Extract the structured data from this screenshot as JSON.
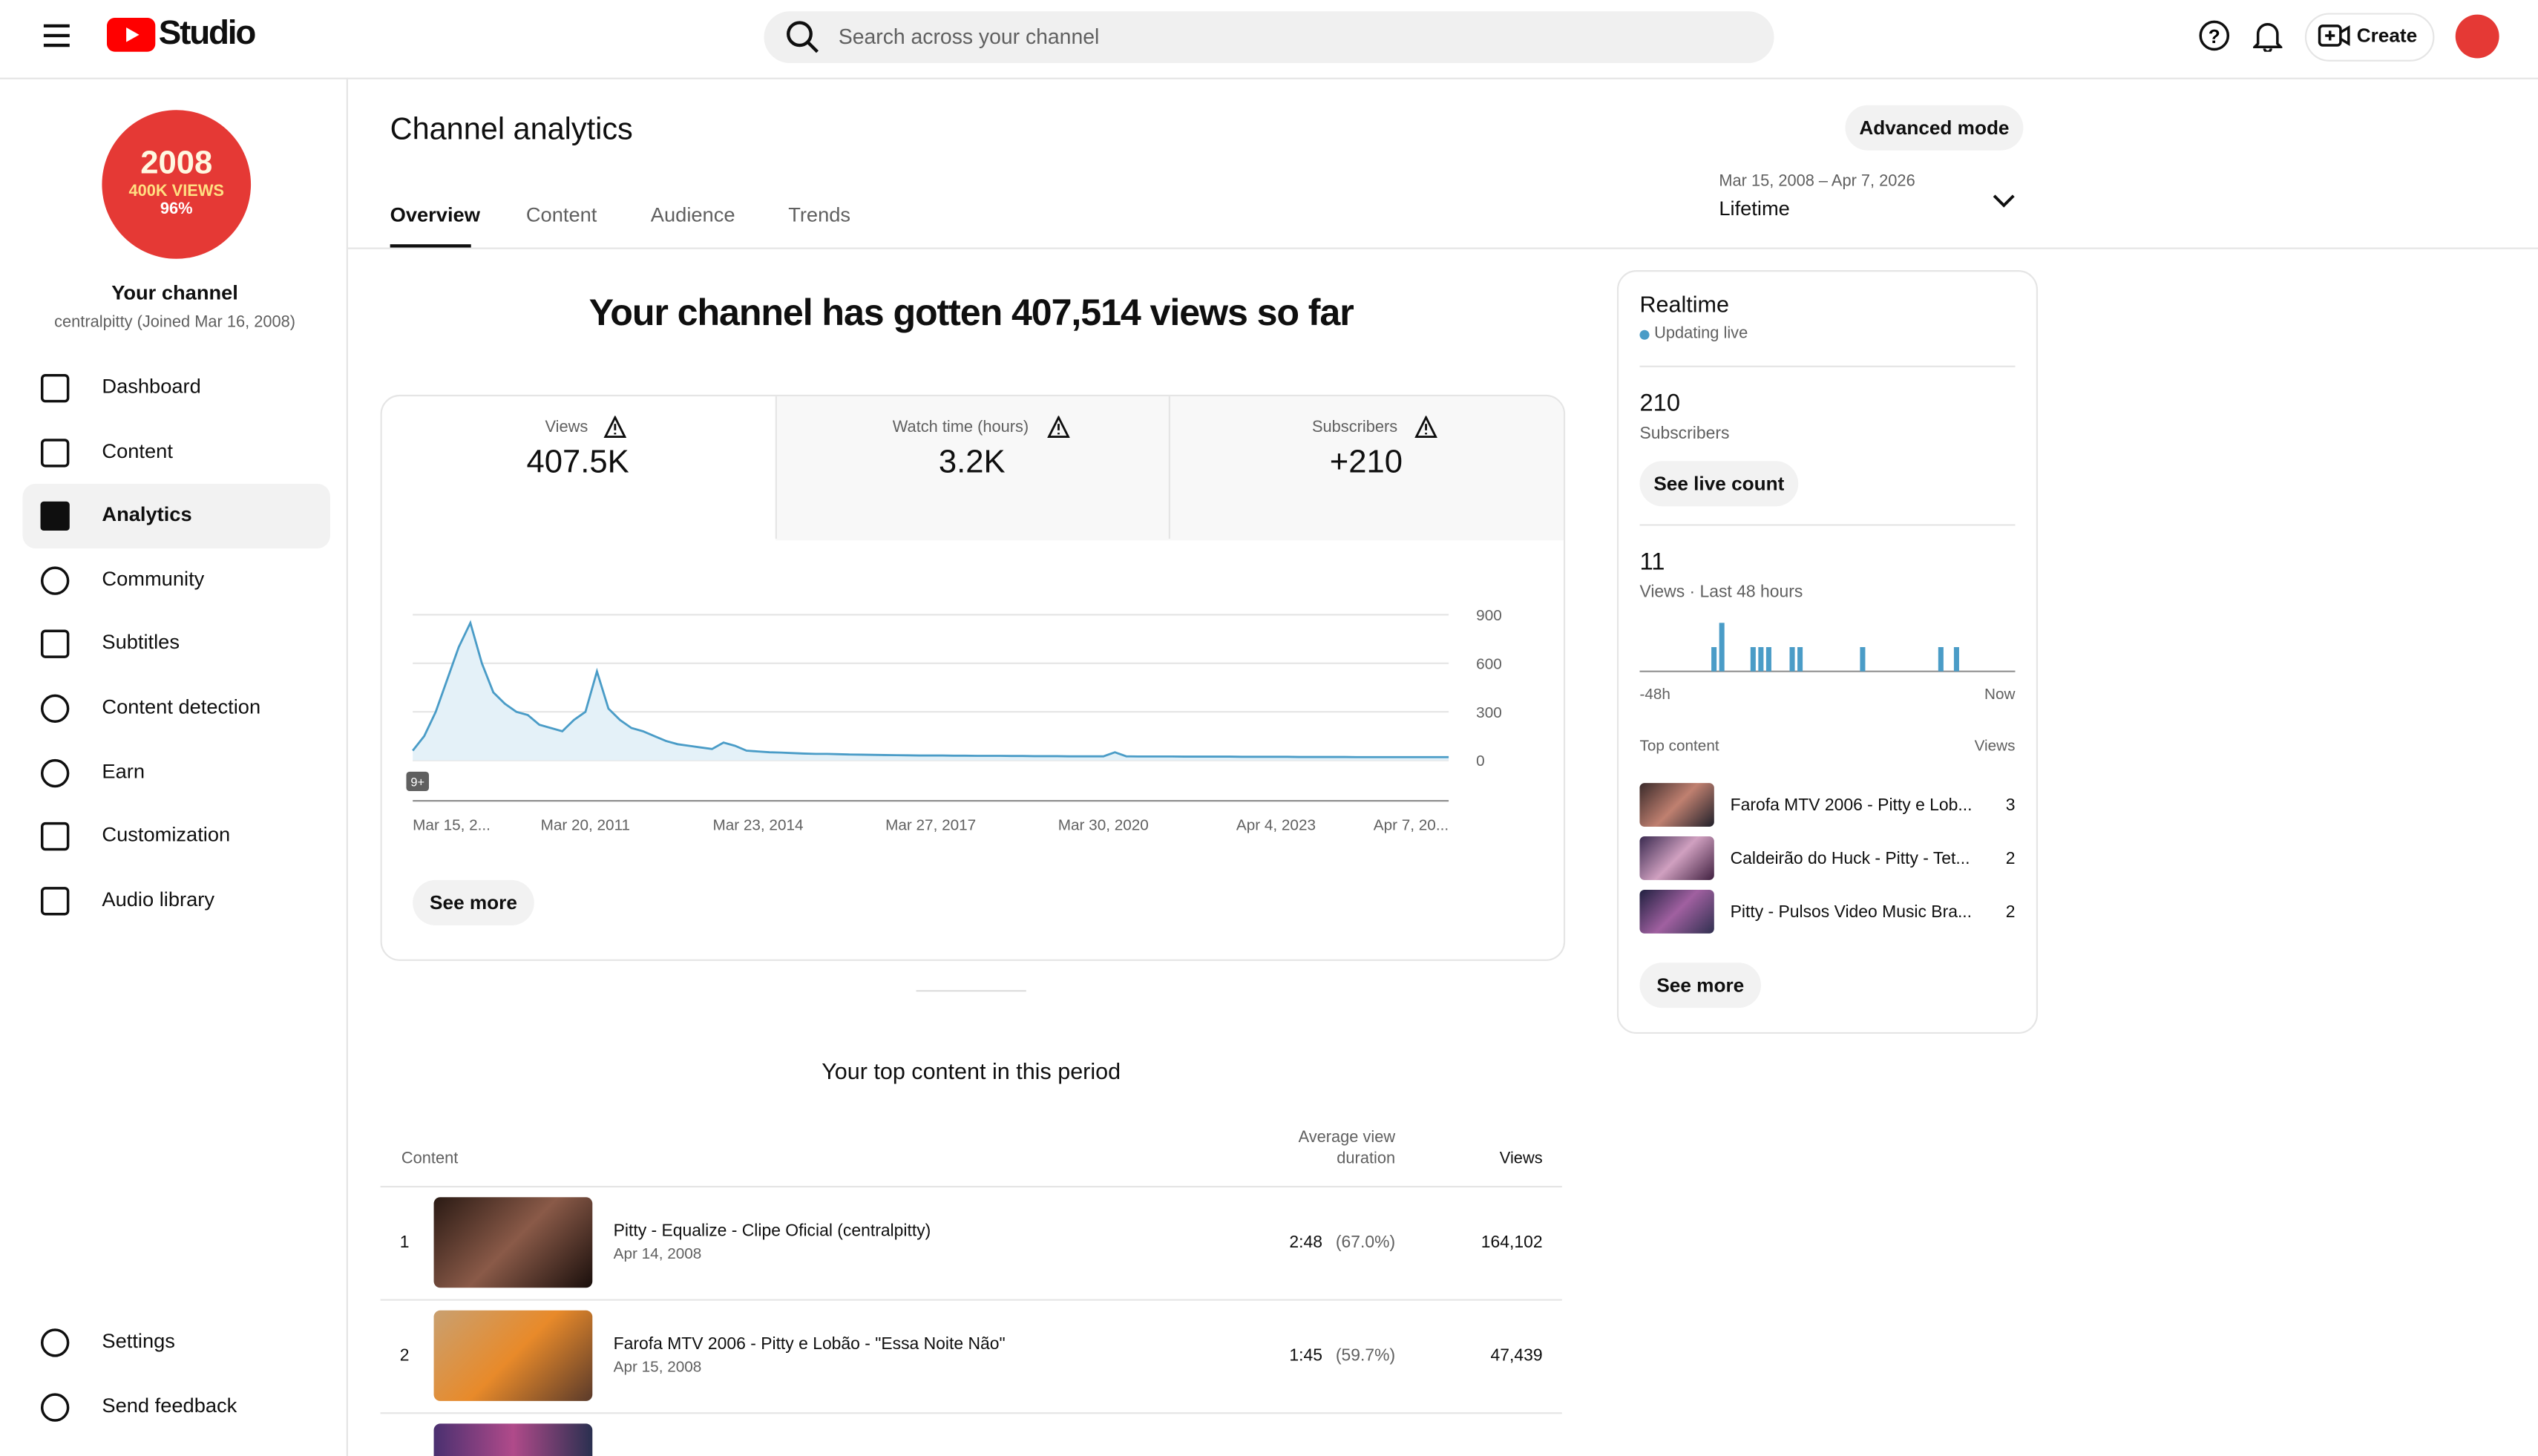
{
  "header": {
    "logo": "Studio",
    "search_placeholder": "Search across your channel",
    "create": "Create"
  },
  "sidebar": {
    "avatar": {
      "line1": "2008",
      "line2": "400K VIEWS",
      "line3": "96%"
    },
    "channel_name": "Your channel",
    "channel_sub": "centralpitty (Joined Mar 16, 2008)",
    "nav": [
      "Dashboard",
      "Content",
      "Analytics",
      "Community",
      "Subtitles",
      "Content detection",
      "Earn",
      "Customization",
      "Audio library"
    ],
    "bottom": [
      "Settings",
      "Send feedback"
    ]
  },
  "main": {
    "title": "Channel analytics",
    "advanced": "Advanced mode",
    "tabs": [
      "Overview",
      "Content",
      "Audience",
      "Trends"
    ],
    "date_range": "Mar 15, 2008 – Apr 7, 2026",
    "period": "Lifetime",
    "headline": "Your channel has gotten 407,514 views so far",
    "metrics": [
      {
        "label": "Views",
        "value": "407.5K"
      },
      {
        "label": "Watch time (hours)",
        "value": "3.2K"
      },
      {
        "label": "Subscribers",
        "value": "+210"
      }
    ],
    "chart_data": {
      "type": "line",
      "color": "#4a9cc7",
      "annotation": "9+",
      "values": [
        60,
        150,
        300,
        500,
        700,
        850,
        600,
        420,
        350,
        300,
        280,
        220,
        200,
        180,
        250,
        300,
        550,
        320,
        250,
        200,
        180,
        150,
        120,
        100,
        90,
        80,
        70,
        110,
        90,
        60,
        55,
        50,
        48,
        45,
        42,
        40,
        40,
        38,
        36,
        35,
        34,
        33,
        32,
        31,
        30,
        30,
        30,
        29,
        29,
        28,
        28,
        28,
        27,
        27,
        26,
        26,
        26,
        25,
        25,
        25,
        25,
        50,
        25,
        24,
        24,
        24,
        24,
        23,
        23,
        23,
        23,
        23,
        22,
        22,
        22,
        22,
        22,
        21,
        21,
        21,
        21,
        21,
        20,
        20,
        20,
        20,
        20,
        20,
        20,
        20,
        20
      ],
      "xlim": [
        0,
        90
      ],
      "xticks": [
        {
          "value": 0,
          "label": "Mar 15, 2..."
        },
        {
          "value": 15,
          "label": "Mar 20, 2011"
        },
        {
          "value": 30,
          "label": "Mar 23, 2014"
        },
        {
          "value": 45,
          "label": "Mar 27, 2017"
        },
        {
          "value": 60,
          "label": "Mar 30, 2020"
        },
        {
          "value": 75,
          "label": "Apr 4, 2023"
        },
        {
          "value": 90,
          "label": "Apr 7, 20..."
        }
      ],
      "ylim": [
        0,
        900
      ],
      "yticks": [
        0,
        300,
        600,
        900
      ],
      "grid": true
    },
    "see_more": "See more",
    "top_title": "Your top content in this period",
    "table": {
      "headers": [
        "Content",
        "Average view duration",
        "Views"
      ],
      "rows": [
        {
          "rank": "1",
          "title": "Pitty - Equalize - Clipe Oficial (centralpitty)",
          "date": "Apr 14, 2008",
          "duration": "2:48",
          "percent": "(67.0%)",
          "views": "164,102"
        },
        {
          "rank": "2",
          "title": "Farofa MTV 2006 - Pitty e Lobão - \"Essa Noite Não\"",
          "date": "Apr 15, 2008",
          "duration": "1:45",
          "percent": "(59.7%)",
          "views": "47,439"
        }
      ]
    }
  },
  "realtime": {
    "title": "Realtime",
    "status": "Updating live",
    "subscribers": "210",
    "subscribers_label": "Subscribers",
    "live_button": "See live count",
    "views": "11",
    "views_label": "Views · Last 48 hours",
    "chart_data": {
      "type": "bar",
      "color": "#4a9cc7",
      "values": [
        0,
        0,
        0,
        0,
        0,
        0,
        0,
        0,
        0,
        1,
        2,
        0,
        0,
        0,
        1,
        1,
        1,
        0,
        0,
        1,
        1,
        0,
        0,
        0,
        0,
        0,
        0,
        0,
        1,
        0,
        0,
        0,
        0,
        0,
        0,
        0,
        0,
        0,
        1,
        0,
        1,
        0,
        0,
        0,
        0,
        0,
        0,
        0
      ],
      "ylim": [
        0,
        2
      ],
      "x_start": "-48h",
      "x_end": "Now"
    },
    "top_label": "Top content",
    "top_views_label": "Views",
    "top": [
      {
        "title": "Farofa MTV 2006 - Pitty e Lob...",
        "views": "3"
      },
      {
        "title": "Caldeirão do Huck - Pitty - Tet...",
        "views": "2"
      },
      {
        "title": "Pitty - Pulsos Video Music Bra...",
        "views": "2"
      }
    ],
    "see_more": "See more"
  }
}
